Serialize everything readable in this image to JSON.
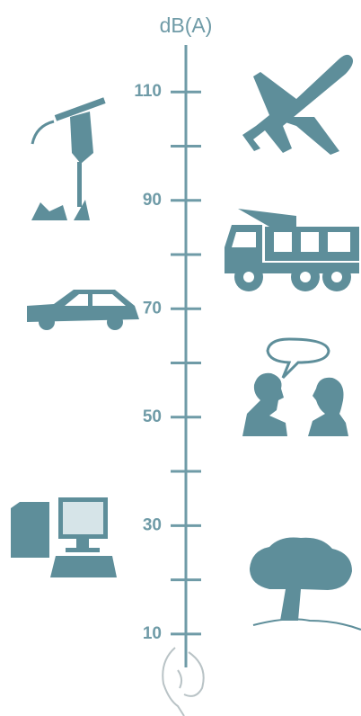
{
  "scale": {
    "label": "dB(A)",
    "lim": [
      4,
      118.5
    ],
    "ticks": [
      10,
      30,
      50,
      70,
      90,
      110
    ],
    "minor_ticks": [
      20,
      40,
      60,
      80,
      100
    ]
  }
}
